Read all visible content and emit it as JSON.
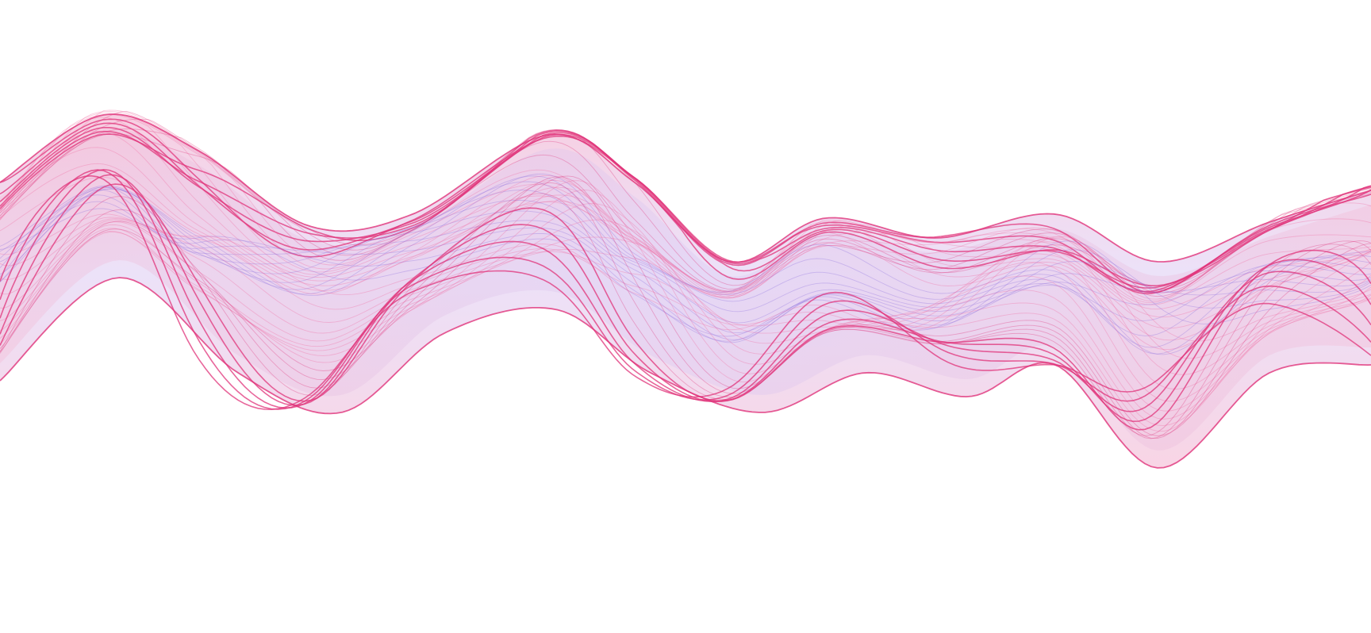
{
  "artwork": {
    "kind": "abstract flowing ribbon wave",
    "background_color": "#ffffff",
    "palette": {
      "magenta": "#e0337a",
      "pink": "#f06aa0",
      "light_pink": "#f6c6dc",
      "violet": "#8e72e0",
      "lavender": "#c9b8f0"
    }
  }
}
